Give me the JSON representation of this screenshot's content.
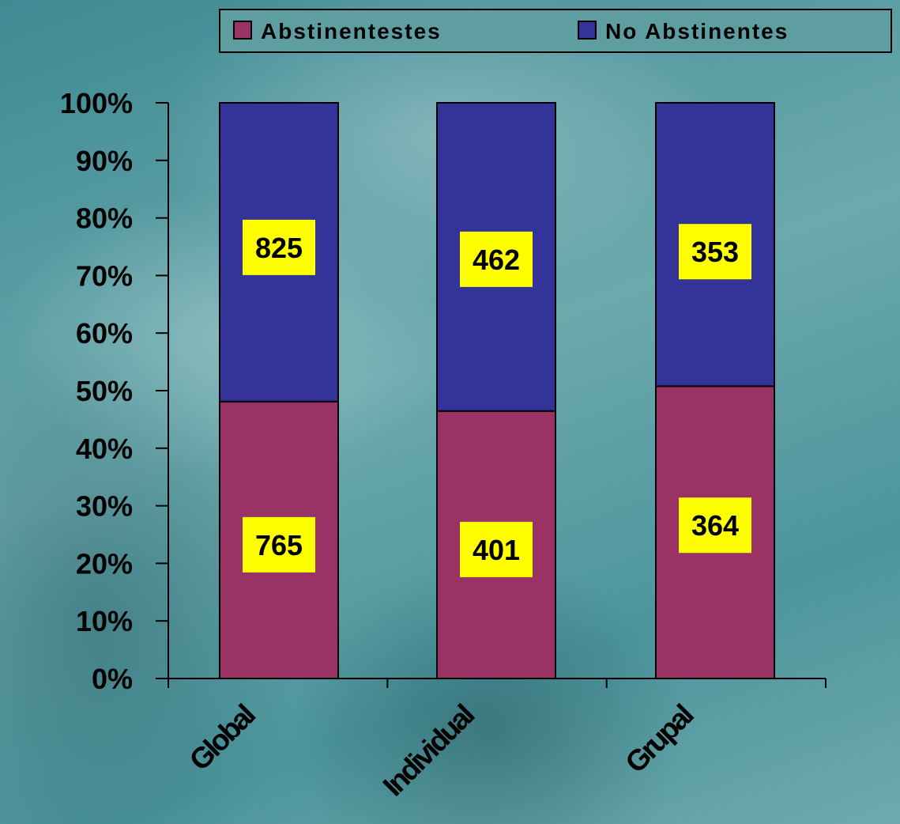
{
  "chart_data": {
    "type": "bar",
    "stacked": "percent",
    "categories": [
      "Global",
      "Individual",
      "Grupal"
    ],
    "series": [
      {
        "name": "Abstinentestes",
        "values": [
          765,
          401,
          364
        ],
        "color": "#993366"
      },
      {
        "name": "No Abstinentes",
        "values": [
          825,
          462,
          353
        ],
        "color": "#333399"
      }
    ],
    "ylim": [
      0,
      100
    ],
    "y_ticks": [
      "0%",
      "10%",
      "20%",
      "30%",
      "40%",
      "50%",
      "60%",
      "70%",
      "80%",
      "90%",
      "100%"
    ],
    "legend": {
      "position": "top-right"
    },
    "data_label_background": "#ffff00",
    "grid": false
  }
}
